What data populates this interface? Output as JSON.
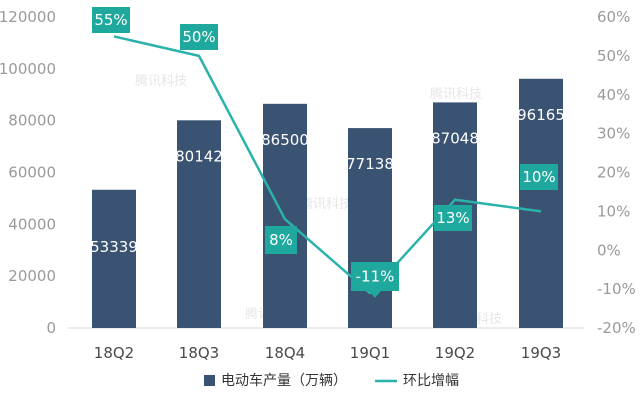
{
  "chart_data": {
    "type": "bar",
    "categories": [
      "18Q2",
      "18Q3",
      "18Q4",
      "19Q1",
      "19Q2",
      "19Q3"
    ],
    "series": [
      {
        "name": "电动车产量（万辆）",
        "type": "bar",
        "axis": "left",
        "values": [
          53339,
          80142,
          86500,
          77138,
          87048,
          96165
        ],
        "labels": [
          "53339",
          "80142",
          "86500",
          "77138",
          "87048",
          "96165"
        ]
      },
      {
        "name": "环比增幅",
        "type": "line",
        "axis": "right",
        "values": [
          55,
          50,
          8,
          -11,
          13,
          10
        ],
        "labels": [
          "55%",
          "50%",
          "8%",
          "-11%",
          "13%",
          "10%"
        ]
      }
    ],
    "y_left": {
      "min": 0,
      "max": 120000,
      "ticks": [
        "0",
        "20000",
        "40000",
        "60000",
        "80000",
        "100000",
        "120000"
      ]
    },
    "y_right": {
      "min": -20,
      "max": 60,
      "ticks": [
        "-20%",
        "-10%",
        "0%",
        "10%",
        "20%",
        "30%",
        "40%",
        "50%",
        "60%"
      ]
    },
    "legend_position": "bottom",
    "watermark": "腾讯科技",
    "colors": {
      "bar": "#3a5372",
      "line": "#2bb3ab",
      "label_box": "#1fa89d"
    }
  }
}
